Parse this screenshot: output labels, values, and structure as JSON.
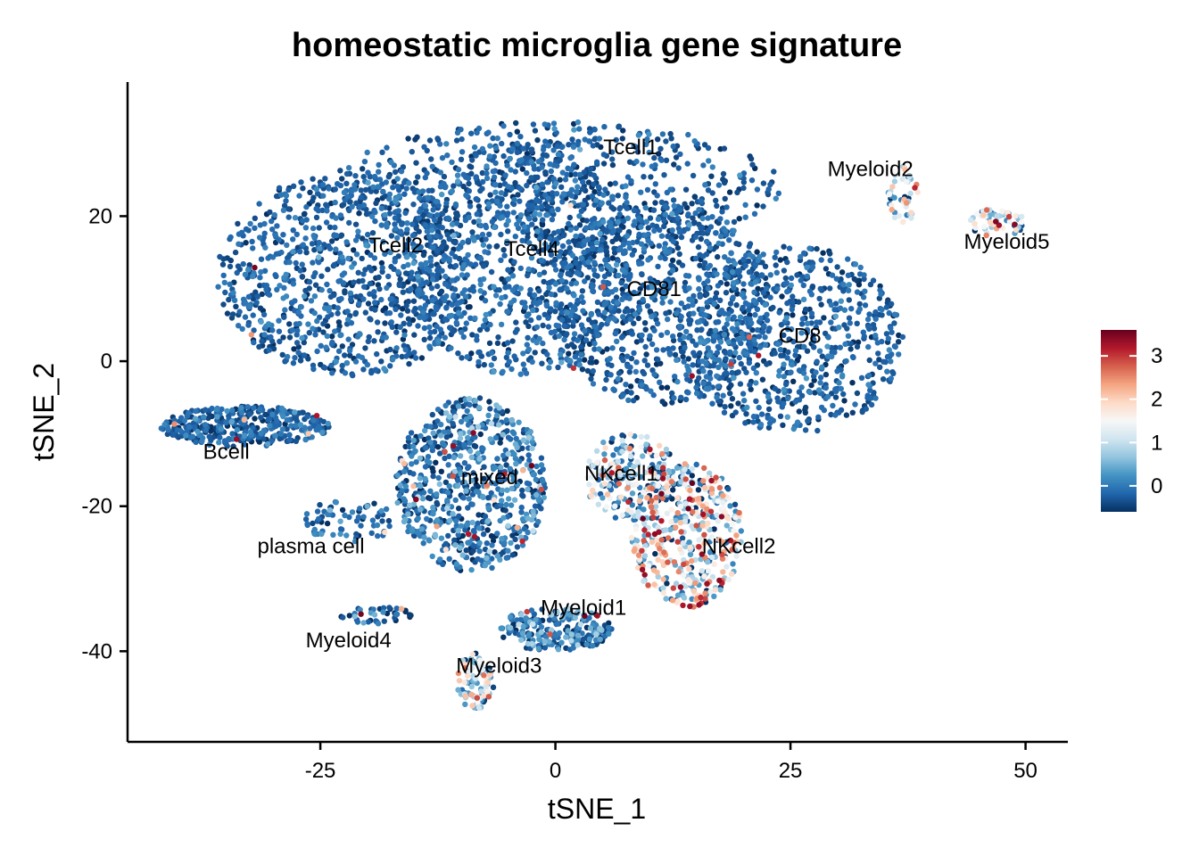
{
  "chart_data": {
    "type": "scatter",
    "title": "homeostatic microglia gene signature",
    "xlabel": "tSNE_1",
    "ylabel": "tSNE_2",
    "xlim": [
      -45.5,
      54.5
    ],
    "ylim": [
      -52.5,
      38.5
    ],
    "xticks": [
      -25,
      0,
      25,
      50
    ],
    "xtick_labels": [
      "-25",
      "0",
      "25",
      "50"
    ],
    "yticks": [
      -40,
      -20,
      0,
      20
    ],
    "ytick_labels": [
      "-40",
      "-20",
      "0",
      "20"
    ],
    "grid": false,
    "legend": {
      "placement": "right",
      "type": "colorbar",
      "range": [
        -0.6,
        3.6
      ],
      "ticks": [
        0,
        1,
        2,
        3
      ],
      "tick_labels": [
        "0",
        "1",
        "2",
        "3"
      ],
      "colors": [
        "#053061",
        "#2166AC",
        "#4393C3",
        "#92C5DE",
        "#D1E5F0",
        "#F7F7F7",
        "#FDDBC7",
        "#F4A582",
        "#D6604D",
        "#B2182B",
        "#67001F"
      ]
    },
    "clusters": [
      {
        "label": "Tcell1",
        "x": 8,
        "y": 29.5,
        "cx": 0,
        "cy": 24,
        "rx": 24,
        "ry": 9,
        "n": 600,
        "mean": -0.25,
        "spread": 0.2,
        "hot": 0.004
      },
      {
        "label": "Tcell2",
        "x": -17,
        "y": 16,
        "cx": -22,
        "cy": 12,
        "rx": 14,
        "ry": 14,
        "n": 900,
        "mean": -0.25,
        "spread": 0.2,
        "hot": 0.003
      },
      {
        "label": "Tcell4",
        "x": -2.5,
        "y": 15.5,
        "cx": -4,
        "cy": 14,
        "rx": 12,
        "ry": 16,
        "n": 800,
        "mean": -0.25,
        "spread": 0.2,
        "hot": 0.003
      },
      {
        "label": "CD81",
        "x": 10.5,
        "y": 10,
        "cx": 11,
        "cy": 8,
        "rx": 12,
        "ry": 14,
        "n": 800,
        "mean": -0.25,
        "spread": 0.2,
        "hot": 0.004
      },
      {
        "label": "CD8",
        "x": 26,
        "y": 3.5,
        "cx": 25,
        "cy": 3,
        "rx": 12,
        "ry": 13,
        "n": 700,
        "mean": -0.25,
        "spread": 0.2,
        "hot": 0.004
      },
      {
        "label": "Myeloid2",
        "x": 33.5,
        "y": 26.5,
        "cx": 37,
        "cy": 23,
        "rx": 1.6,
        "ry": 4,
        "n": 45,
        "mean": 0.9,
        "spread": 0.9,
        "hot": 0.1
      },
      {
        "label": "Myeloid5",
        "x": 48,
        "y": 16.5,
        "cx": 47,
        "cy": 19,
        "rx": 3,
        "ry": 2,
        "n": 60,
        "mean": 1.0,
        "spread": 0.9,
        "hot": 0.1
      },
      {
        "label": "Bcell",
        "x": -35,
        "y": -12.5,
        "cx": -33,
        "cy": -9,
        "rx": 9,
        "ry": 2.8,
        "n": 350,
        "mean": -0.25,
        "spread": 0.25,
        "hot": 0.01
      },
      {
        "label": "mixed",
        "x": -7,
        "y": -16,
        "cx": -9,
        "cy": -17,
        "rx": 8,
        "ry": 12,
        "n": 700,
        "mean": -0.1,
        "spread": 0.4,
        "hot": 0.03
      },
      {
        "label": "NKcell1",
        "x": 7,
        "y": -15.5,
        "cx": 8,
        "cy": -16,
        "rx": 5,
        "ry": 6,
        "n": 200,
        "mean": 0.4,
        "spread": 0.9,
        "hot": 0.1
      },
      {
        "label": "NKcell2",
        "x": 19.5,
        "y": -25.5,
        "cx": 14,
        "cy": -24,
        "rx": 6,
        "ry": 10,
        "n": 450,
        "mean": 0.9,
        "spread": 1.0,
        "hot": 0.15
      },
      {
        "label": "plasma cell",
        "x": -26,
        "y": -25.5,
        "cx": -22,
        "cy": -22,
        "rx": 5,
        "ry": 3,
        "n": 70,
        "mean": -0.2,
        "spread": 0.3,
        "hot": 0.02
      },
      {
        "label": "Myeloid1",
        "x": 3,
        "y": -34,
        "cx": 0,
        "cy": -37,
        "rx": 6,
        "ry": 3,
        "n": 220,
        "mean": -0.1,
        "spread": 0.5,
        "hot": 0.04
      },
      {
        "label": "Myeloid4",
        "x": -22,
        "y": -38.5,
        "cx": -19,
        "cy": -35,
        "rx": 4,
        "ry": 1.2,
        "n": 40,
        "mean": -0.2,
        "spread": 0.4,
        "hot": 0.03
      },
      {
        "label": "Myeloid3",
        "x": -6,
        "y": -42,
        "cx": -8.5,
        "cy": -44,
        "rx": 2,
        "ry": 4,
        "n": 90,
        "mean": 0.6,
        "spread": 0.8,
        "hot": 0.05
      }
    ]
  }
}
